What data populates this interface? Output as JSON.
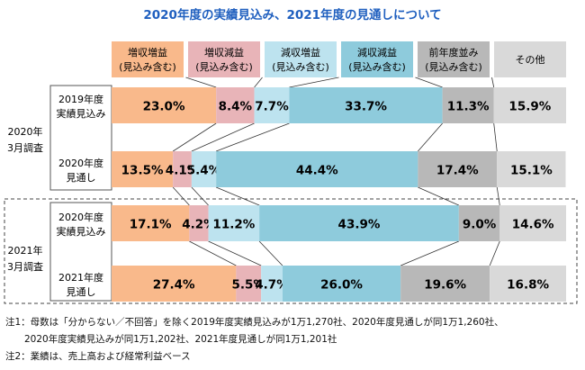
{
  "title": "2020年度の実績見込み、2021年度の見通しについて",
  "chart_data": {
    "type": "bar",
    "orientation": "horizontal",
    "stacked": true,
    "unit": "%",
    "categories": [
      {
        "group": "2020年 3月調査",
        "group_lines": [
          "2020年",
          "3月調査"
        ],
        "label": "2019年度実績見込み",
        "label_lines": [
          "2019年度",
          "実績見込み"
        ]
      },
      {
        "group": "2020年 3月調査",
        "group_lines": [
          "2020年",
          "3月調査"
        ],
        "label": "2020年度見通し",
        "label_lines": [
          "2020年度",
          "見通し"
        ]
      },
      {
        "group": "2021年 3月調査",
        "group_lines": [
          "2021年",
          "3月調査"
        ],
        "label": "2020年度実績見込み",
        "label_lines": [
          "2020年度",
          "実績見込み"
        ]
      },
      {
        "group": "2021年 3月調査",
        "group_lines": [
          "2021年",
          "3月調査"
        ],
        "label": "2021年度見通し",
        "label_lines": [
          "2021年度",
          "見通し"
        ]
      }
    ],
    "series": [
      {
        "name": "増収増益（見込み含む）",
        "name_lines": [
          "増収増益",
          "(見込み含む)"
        ],
        "color": "#f9b98b",
        "values": [
          23.0,
          13.5,
          17.1,
          27.4
        ]
      },
      {
        "name": "増収減益（見込み含む）",
        "name_lines": [
          "増収減益",
          "(見込み含む)"
        ],
        "color": "#e8b4b8",
        "values": [
          8.4,
          4.1,
          4.2,
          5.5
        ]
      },
      {
        "name": "減収増益（見込み含む）",
        "name_lines": [
          "減収増益",
          "(見込み含む)"
        ],
        "color": "#bde3ef",
        "values": [
          7.7,
          5.4,
          11.2,
          4.7
        ]
      },
      {
        "name": "減収減益（見込み含む）",
        "name_lines": [
          "減収減益",
          "(見込み含む)"
        ],
        "color": "#8ecbdc",
        "values": [
          33.7,
          44.4,
          43.9,
          26.0
        ]
      },
      {
        "name": "前年度並み（見込み含む）",
        "name_lines": [
          "前年度並み",
          "(見込み含む)"
        ],
        "color": "#b8b8b8",
        "values": [
          11.3,
          17.4,
          9.0,
          19.6
        ]
      },
      {
        "name": "その他",
        "name_lines": [
          "その他"
        ],
        "color": "#d9d9d9",
        "values": [
          15.9,
          15.1,
          14.6,
          16.8
        ]
      }
    ],
    "value_labels": [
      [
        "23.0%",
        "8.4%",
        "7.7%",
        "33.7%",
        "11.3%",
        "15.9%"
      ],
      [
        "13.5%",
        "4.1%",
        "5.4%",
        "44.4%",
        "17.4%",
        "15.1%"
      ],
      [
        "17.1%",
        "4.2%",
        "11.2%",
        "43.9%",
        "9.0%",
        "14.6%"
      ],
      [
        "27.4%",
        "5.5%",
        "4.7%",
        "26.0%",
        "19.6%",
        "16.8%"
      ]
    ],
    "xlim": [
      0,
      100
    ],
    "legend": "top",
    "grid": false
  },
  "notes": [
    "注1：母数は「分からない／不回答」を除く2019年度実績見込みが1万1,270社、2020年度見通しが同1万1,260社、",
    "　　2020年度実績見込みが同1万1,202社、2021年度見通しが同1万1,201社",
    "注2：業績は、売上高および経常利益ベース"
  ]
}
